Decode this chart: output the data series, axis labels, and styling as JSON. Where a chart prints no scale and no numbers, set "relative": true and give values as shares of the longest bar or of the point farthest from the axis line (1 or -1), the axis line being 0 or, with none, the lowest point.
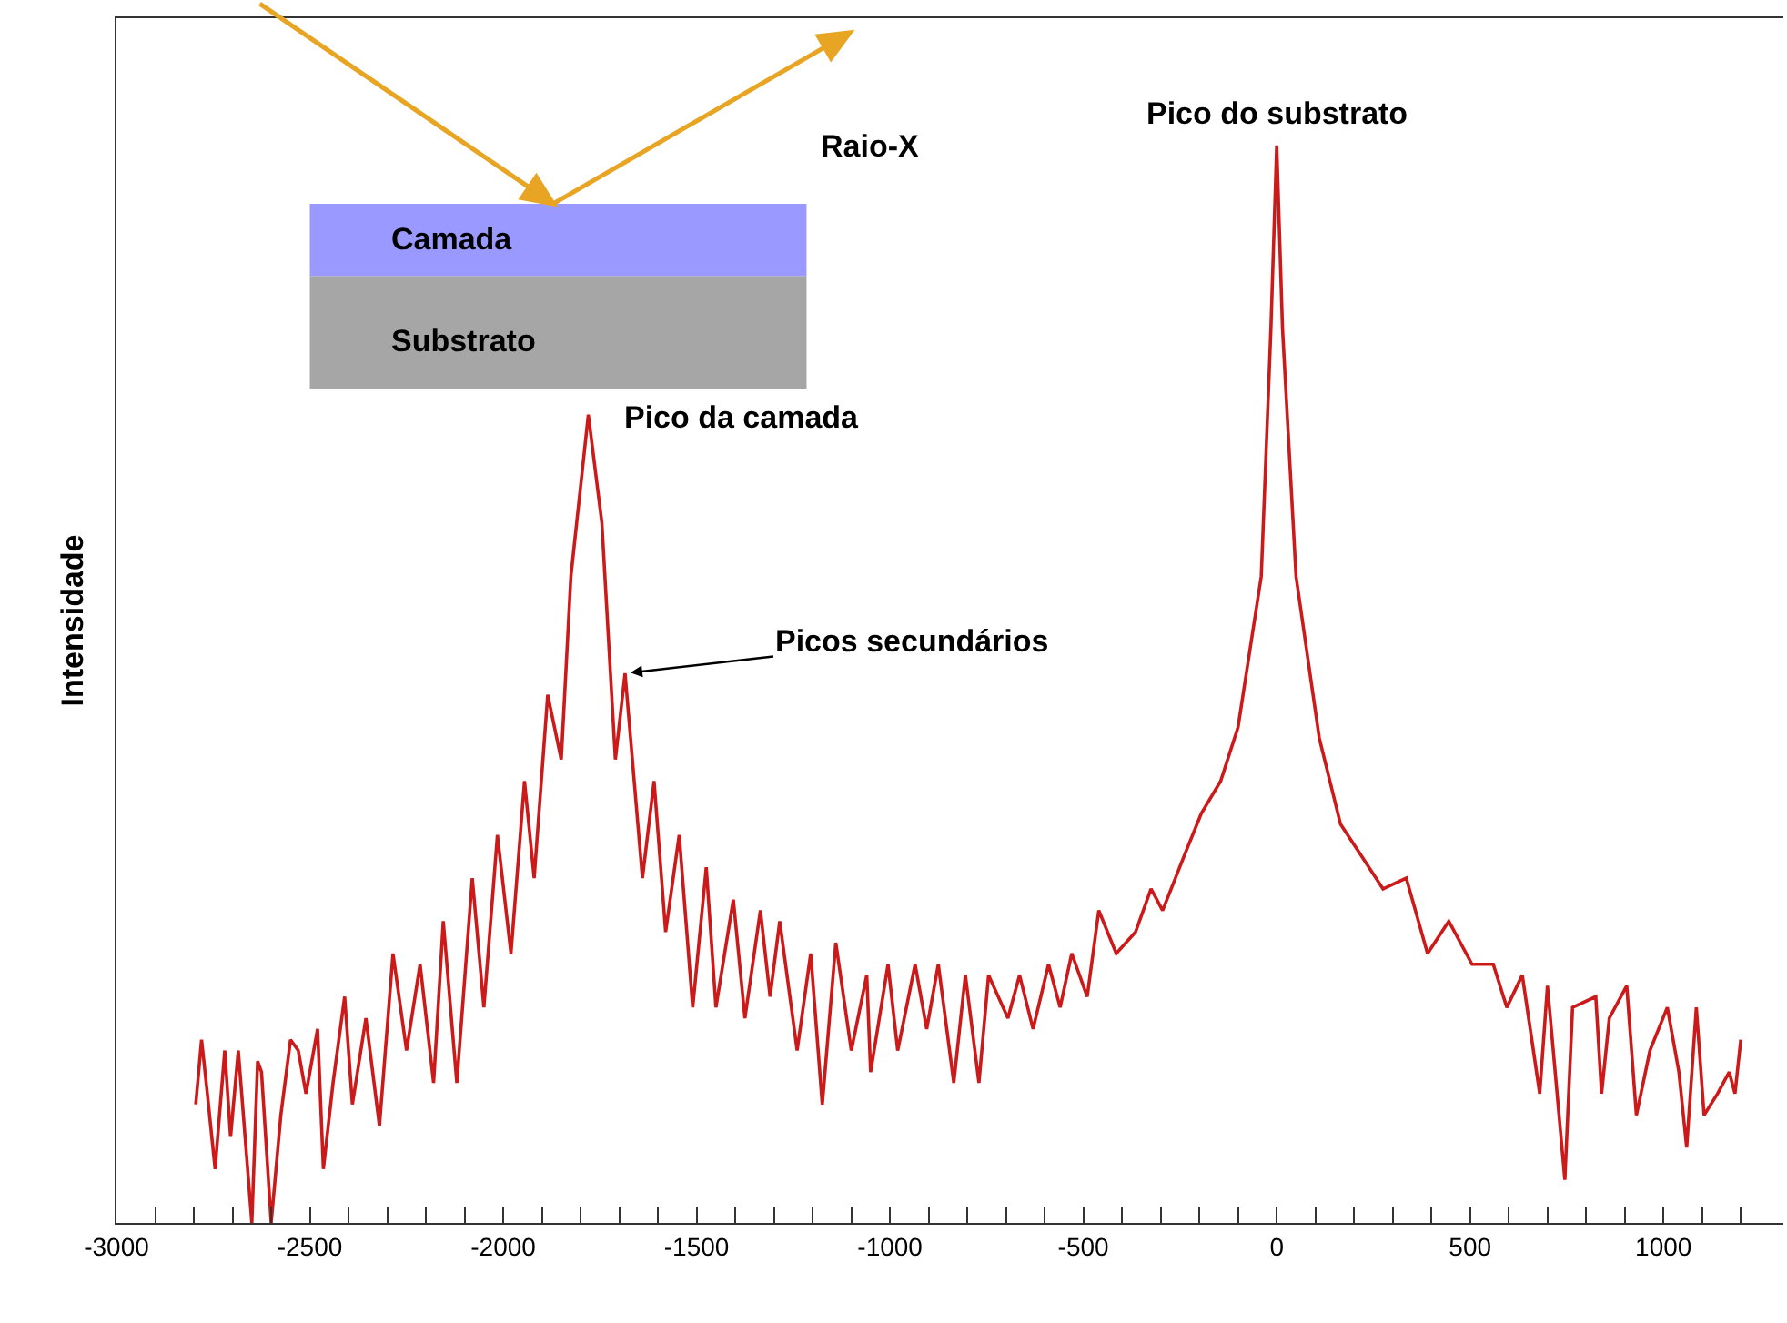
{
  "chart_data": {
    "type": "line",
    "relative": true,
    "ylabel": "Intensidade",
    "x": [
      -2795,
      -2780,
      -2765,
      -2745,
      -2720,
      -2705,
      -2685,
      -2650,
      -2635,
      -2625,
      -2600,
      -2575,
      -2550,
      -2530,
      -2510,
      -2480,
      -2465,
      -2440,
      -2410,
      -2390,
      -2355,
      -2320,
      -2285,
      -2250,
      -2215,
      -2180,
      -2155,
      -2120,
      -2080,
      -2050,
      -2015,
      -1980,
      -1945,
      -1920,
      -1885,
      -1850,
      -1825,
      -1780,
      -1745,
      -1710,
      -1685,
      -1640,
      -1610,
      -1580,
      -1545,
      -1510,
      -1475,
      -1450,
      -1405,
      -1375,
      -1335,
      -1310,
      -1285,
      -1240,
      -1205,
      -1175,
      -1140,
      -1100,
      -1060,
      -1050,
      -1005,
      -980,
      -935,
      -905,
      -875,
      -835,
      -805,
      -770,
      -745,
      -695,
      -665,
      -630,
      -590,
      -560,
      -530,
      -490,
      -460,
      -415,
      -365,
      -325,
      -295,
      -240,
      -195,
      -145,
      -100,
      -40,
      -15,
      0,
      15,
      50,
      110,
      165,
      220,
      275,
      335,
      390,
      445,
      505,
      560,
      595,
      635,
      680,
      700,
      745,
      765,
      825,
      840,
      860,
      905,
      930,
      965,
      1010,
      1040,
      1060,
      1085,
      1105,
      1140,
      1170,
      1185,
      1200
    ],
    "series": [
      {
        "color": "#cc1a1a",
        "values": [
          0.11,
          0.17,
          0.12,
          0.05,
          0.16,
          0.08,
          0.16,
          0.0,
          0.15,
          0.14,
          0.0,
          0.1,
          0.17,
          0.16,
          0.12,
          0.18,
          0.05,
          0.13,
          0.21,
          0.11,
          0.19,
          0.09,
          0.25,
          0.16,
          0.24,
          0.13,
          0.28,
          0.13,
          0.32,
          0.2,
          0.36,
          0.25,
          0.41,
          0.32,
          0.49,
          0.43,
          0.6,
          0.75,
          0.65,
          0.43,
          0.51,
          0.32,
          0.41,
          0.27,
          0.36,
          0.2,
          0.33,
          0.2,
          0.3,
          0.19,
          0.29,
          0.21,
          0.28,
          0.16,
          0.25,
          0.11,
          0.26,
          0.16,
          0.23,
          0.14,
          0.24,
          0.16,
          0.24,
          0.18,
          0.24,
          0.13,
          0.23,
          0.13,
          0.23,
          0.19,
          0.23,
          0.18,
          0.24,
          0.2,
          0.25,
          0.21,
          0.29,
          0.25,
          0.27,
          0.31,
          0.29,
          0.34,
          0.38,
          0.41,
          0.46,
          0.6,
          0.83,
          1.0,
          0.83,
          0.6,
          0.45,
          0.37,
          0.34,
          0.31,
          0.32,
          0.25,
          0.28,
          0.24,
          0.24,
          0.2,
          0.23,
          0.12,
          0.22,
          0.04,
          0.2,
          0.21,
          0.12,
          0.19,
          0.22,
          0.1,
          0.16,
          0.2,
          0.14,
          0.07,
          0.2,
          0.1,
          0.12,
          0.14,
          0.12,
          0.17
        ]
      }
    ],
    "xlim": [
      -3000,
      1310
    ],
    "xticks": [
      -3000,
      {
        "value": -2900,
        "label": null
      },
      {
        "value": -2800,
        "label": null
      },
      {
        "value": -2700,
        "label": null
      },
      {
        "value": -2600,
        "label": null
      },
      -2500,
      {
        "value": -2400,
        "label": null
      },
      {
        "value": -2300,
        "label": null
      },
      {
        "value": -2200,
        "label": null
      },
      {
        "value": -2100,
        "label": null
      },
      -2000,
      {
        "value": -1900,
        "label": null
      },
      {
        "value": -1800,
        "label": null
      },
      {
        "value": -1700,
        "label": null
      },
      {
        "value": -1600,
        "label": null
      },
      -1500,
      {
        "value": -1400,
        "label": null
      },
      {
        "value": -1300,
        "label": null
      },
      {
        "value": -1200,
        "label": null
      },
      {
        "value": -1100,
        "label": null
      },
      -1000,
      {
        "value": -900,
        "label": null
      },
      {
        "value": -800,
        "label": null
      },
      {
        "value": -700,
        "label": null
      },
      {
        "value": -600,
        "label": null
      },
      -500,
      {
        "value": -400,
        "label": null
      },
      {
        "value": -300,
        "label": null
      },
      {
        "value": -200,
        "label": null
      },
      {
        "value": -100,
        "label": null
      },
      0,
      {
        "value": 100,
        "label": null
      },
      {
        "value": 200,
        "label": null
      },
      {
        "value": 300,
        "label": null
      },
      {
        "value": 400,
        "label": null
      },
      500,
      {
        "value": 600,
        "label": null
      },
      {
        "value": 700,
        "label": null
      },
      {
        "value": 800,
        "label": null
      },
      {
        "value": 900,
        "label": null
      },
      1000,
      {
        "value": 1100,
        "label": null
      },
      {
        "value": 1200,
        "label": null
      }
    ],
    "marker": "none",
    "line_style": "solid",
    "annotations": [
      {
        "text": "Pico do substrato",
        "x": 0,
        "y": 1.0
      },
      {
        "text": "Pico da camada",
        "x": -1780,
        "y": 0.75
      },
      {
        "text": "Picos secundários",
        "x": -1685,
        "y": 0.51
      },
      "Raio-X",
      "Camada",
      "Substrato"
    ]
  }
}
